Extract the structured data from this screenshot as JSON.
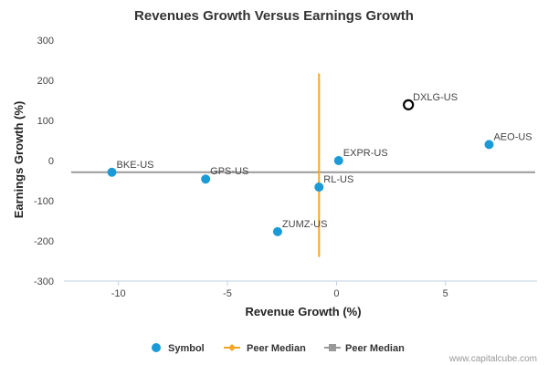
{
  "chart_data": {
    "type": "scatter",
    "title": "Revenues Growth Versus Earnings Growth",
    "xlabel": "Revenue Growth (%)",
    "ylabel": "Earnings Growth (%)",
    "xlim": [
      -12.5,
      9.2
    ],
    "ylim": [
      -300,
      300
    ],
    "x_ticks": [
      -10,
      -5,
      0,
      5
    ],
    "y_ticks": [
      300,
      200,
      100,
      0,
      -100,
      -200,
      -300
    ],
    "x_tick_labels": [
      "-10",
      "-5",
      "0",
      "5"
    ],
    "y_tick_labels": [
      "300",
      "200",
      "100",
      "0",
      "-100",
      "-200",
      "-300"
    ],
    "grid": false,
    "legend_position": "bottom",
    "series": [
      {
        "name": "Symbol",
        "color": "#1a9bd7",
        "points": [
          {
            "label": "BKE-US",
            "x": -10.3,
            "y": -29
          },
          {
            "label": "GPS-US",
            "x": -6.0,
            "y": -46
          },
          {
            "label": "ZUMZ-US",
            "x": -2.7,
            "y": -177
          },
          {
            "label": "RL-US",
            "x": -0.8,
            "y": -66
          },
          {
            "label": "EXPR-US",
            "x": 0.1,
            "y": 0
          },
          {
            "label": "AEO-US",
            "x": 7.0,
            "y": 40
          }
        ]
      }
    ],
    "highlight_point": {
      "label": "DXLG-US",
      "x": 3.3,
      "y": 139,
      "color": "#000000"
    },
    "peer_median_revenue": {
      "name": "Peer Median",
      "x": -0.8,
      "y_range": [
        -240,
        217
      ],
      "color": "#f5a623"
    },
    "peer_median_earnings": {
      "name": "Peer Median",
      "y": -29,
      "color": "#999999"
    }
  },
  "credit": "www.capitalcube.com"
}
